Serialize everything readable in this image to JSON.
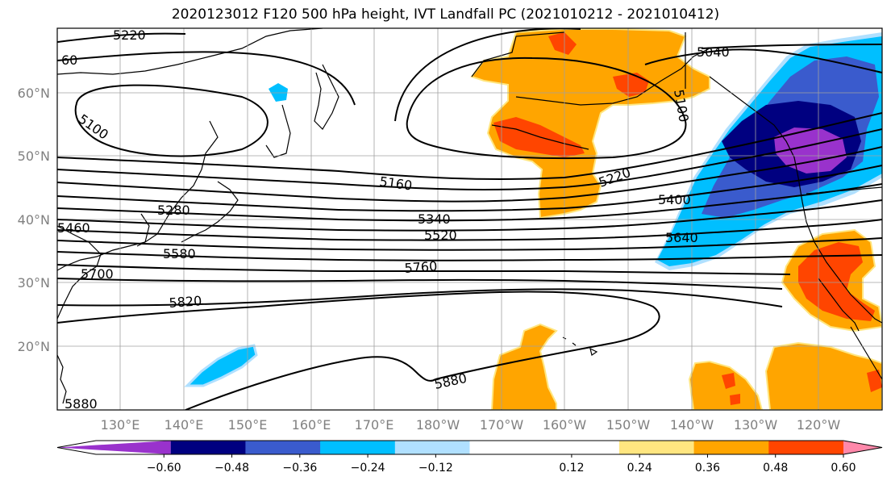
{
  "title": "2020123012 F120 500 hPa height, IVT Landfall PC (2021010212 - 2021010412)",
  "map": {
    "lat_labels": [
      "60°N",
      "50°N",
      "40°N",
      "30°N",
      "20°N"
    ],
    "lon_labels": [
      "130°E",
      "140°E",
      "150°E",
      "160°E",
      "170°E",
      "180°W",
      "170°W",
      "160°W",
      "150°W",
      "140°W",
      "130°W",
      "120°W"
    ]
  },
  "contour_labels": [
    "5220",
    "60",
    "5100",
    "5040",
    "5100",
    "5160",
    "5220",
    "5280",
    "5340",
    "5400",
    "5460",
    "5520",
    "5580",
    "5640",
    "5700",
    "5760",
    "5820",
    "5880",
    "5880"
  ],
  "colorbar": {
    "ticks": [
      "−0.60",
      "−0.48",
      "−0.36",
      "−0.24",
      "−0.12",
      "0.12",
      "0.24",
      "0.36",
      "0.48",
      "0.60"
    ],
    "colors": [
      "#9932cc",
      "#000080",
      "#3a5bcd",
      "#00bfff",
      "#b0e0ff",
      "#ffffff",
      "#ffffff",
      "#ffe680",
      "#ffa500",
      "#ff4500",
      "#b22222",
      "#ff88aa"
    ]
  },
  "chart_data": {
    "type": "map",
    "title": "2020123012 F120 500 hPa height, IVT Landfall PC (2021010212 - 2021010412)",
    "contour_levels": [
      5040,
      5100,
      5160,
      5220,
      5280,
      5340,
      5400,
      5460,
      5520,
      5580,
      5640,
      5700,
      5760,
      5820,
      5880
    ],
    "colorbar_levels": [
      -0.6,
      -0.48,
      -0.36,
      -0.24,
      -0.12,
      0.12,
      0.24,
      0.36,
      0.48,
      0.6
    ],
    "lat_ticks": [
      "60°N",
      "50°N",
      "40°N",
      "30°N",
      "20°N"
    ],
    "lon_ticks": [
      "130°E",
      "140°E",
      "150°E",
      "160°E",
      "170°E",
      "180°W",
      "170°W",
      "160°W",
      "150°W",
      "140°W",
      "130°W",
      "120°W"
    ]
  }
}
